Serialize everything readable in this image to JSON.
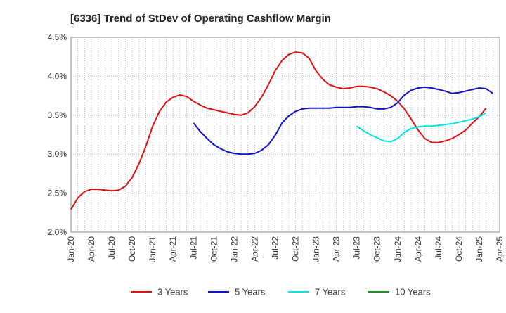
{
  "chart_data": {
    "type": "line",
    "title": "[6336]  Trend of StDev of Operating Cashflow Margin",
    "xlabel": "",
    "ylabel": "",
    "ylim": [
      2.0,
      4.5
    ],
    "y_ticks": [
      "2.0%",
      "2.5%",
      "3.0%",
      "3.5%",
      "4.0%",
      "4.5%"
    ],
    "x_ticks": [
      "Jan-20",
      "Apr-20",
      "Jul-20",
      "Oct-20",
      "Jan-21",
      "Apr-21",
      "Jul-21",
      "Oct-21",
      "Jan-22",
      "Apr-22",
      "Jul-22",
      "Oct-22",
      "Jan-23",
      "Apr-23",
      "Jul-23",
      "Oct-23",
      "Jan-24",
      "Apr-24",
      "Jul-24",
      "Oct-24",
      "Jan-25",
      "Apr-25"
    ],
    "grid": true,
    "legend_position": "bottom",
    "series": [
      {
        "name": "3 Years",
        "color": "#dd1111",
        "points": [
          [
            "2020-01",
            2.29
          ],
          [
            "2020-02",
            2.44
          ],
          [
            "2020-03",
            2.52
          ],
          [
            "2020-04",
            2.55
          ],
          [
            "2020-05",
            2.55
          ],
          [
            "2020-06",
            2.54
          ],
          [
            "2020-07",
            2.53
          ],
          [
            "2020-08",
            2.54
          ],
          [
            "2020-09",
            2.59
          ],
          [
            "2020-10",
            2.7
          ],
          [
            "2020-11",
            2.88
          ],
          [
            "2020-12",
            3.1
          ],
          [
            "2021-01",
            3.36
          ],
          [
            "2021-02",
            3.55
          ],
          [
            "2021-03",
            3.67
          ],
          [
            "2021-04",
            3.73
          ],
          [
            "2021-05",
            3.76
          ],
          [
            "2021-06",
            3.74
          ],
          [
            "2021-07",
            3.68
          ],
          [
            "2021-08",
            3.63
          ],
          [
            "2021-09",
            3.59
          ],
          [
            "2021-10",
            3.57
          ],
          [
            "2021-11",
            3.55
          ],
          [
            "2021-12",
            3.53
          ],
          [
            "2022-01",
            3.51
          ],
          [
            "2022-02",
            3.5
          ],
          [
            "2022-03",
            3.53
          ],
          [
            "2022-04",
            3.61
          ],
          [
            "2022-05",
            3.73
          ],
          [
            "2022-06",
            3.89
          ],
          [
            "2022-07",
            4.07
          ],
          [
            "2022-08",
            4.2
          ],
          [
            "2022-09",
            4.28
          ],
          [
            "2022-10",
            4.31
          ],
          [
            "2022-11",
            4.3
          ],
          [
            "2022-12",
            4.23
          ],
          [
            "2023-01",
            4.07
          ],
          [
            "2023-02",
            3.96
          ],
          [
            "2023-03",
            3.89
          ],
          [
            "2023-04",
            3.86
          ],
          [
            "2023-05",
            3.84
          ],
          [
            "2023-06",
            3.85
          ],
          [
            "2023-07",
            3.87
          ],
          [
            "2023-08",
            3.87
          ],
          [
            "2023-09",
            3.86
          ],
          [
            "2023-10",
            3.84
          ],
          [
            "2023-11",
            3.8
          ],
          [
            "2023-12",
            3.75
          ],
          [
            "2024-01",
            3.68
          ],
          [
            "2024-02",
            3.58
          ],
          [
            "2024-03",
            3.45
          ],
          [
            "2024-04",
            3.31
          ],
          [
            "2024-05",
            3.2
          ],
          [
            "2024-06",
            3.15
          ],
          [
            "2024-07",
            3.15
          ],
          [
            "2024-08",
            3.17
          ],
          [
            "2024-09",
            3.2
          ],
          [
            "2024-10",
            3.25
          ],
          [
            "2024-11",
            3.31
          ],
          [
            "2024-12",
            3.4
          ],
          [
            "2025-01",
            3.48
          ],
          [
            "2025-02",
            3.59
          ]
        ]
      },
      {
        "name": "5 Years",
        "color": "#1111cc",
        "points": [
          [
            "2021-07",
            3.4
          ],
          [
            "2021-08",
            3.29
          ],
          [
            "2021-09",
            3.2
          ],
          [
            "2021-10",
            3.12
          ],
          [
            "2021-11",
            3.07
          ],
          [
            "2021-12",
            3.03
          ],
          [
            "2022-01",
            3.01
          ],
          [
            "2022-02",
            3.0
          ],
          [
            "2022-03",
            3.0
          ],
          [
            "2022-04",
            3.01
          ],
          [
            "2022-05",
            3.05
          ],
          [
            "2022-06",
            3.12
          ],
          [
            "2022-07",
            3.24
          ],
          [
            "2022-08",
            3.4
          ],
          [
            "2022-09",
            3.49
          ],
          [
            "2022-10",
            3.55
          ],
          [
            "2022-11",
            3.58
          ],
          [
            "2022-12",
            3.59
          ],
          [
            "2023-01",
            3.59
          ],
          [
            "2023-02",
            3.59
          ],
          [
            "2023-03",
            3.59
          ],
          [
            "2023-04",
            3.6
          ],
          [
            "2023-05",
            3.6
          ],
          [
            "2023-06",
            3.6
          ],
          [
            "2023-07",
            3.61
          ],
          [
            "2023-08",
            3.61
          ],
          [
            "2023-09",
            3.6
          ],
          [
            "2023-10",
            3.58
          ],
          [
            "2023-11",
            3.58
          ],
          [
            "2023-12",
            3.6
          ],
          [
            "2024-01",
            3.66
          ],
          [
            "2024-02",
            3.76
          ],
          [
            "2024-03",
            3.82
          ],
          [
            "2024-04",
            3.85
          ],
          [
            "2024-05",
            3.86
          ],
          [
            "2024-06",
            3.85
          ],
          [
            "2024-07",
            3.83
          ],
          [
            "2024-08",
            3.81
          ],
          [
            "2024-09",
            3.78
          ],
          [
            "2024-10",
            3.79
          ],
          [
            "2024-11",
            3.81
          ],
          [
            "2024-12",
            3.83
          ],
          [
            "2025-01",
            3.85
          ],
          [
            "2025-02",
            3.84
          ],
          [
            "2025-03",
            3.78
          ]
        ]
      },
      {
        "name": "7 Years",
        "color": "#00e5e5",
        "points": [
          [
            "2023-07",
            3.36
          ],
          [
            "2023-08",
            3.3
          ],
          [
            "2023-09",
            3.25
          ],
          [
            "2023-10",
            3.21
          ],
          [
            "2023-11",
            3.17
          ],
          [
            "2023-12",
            3.16
          ],
          [
            "2024-01",
            3.2
          ],
          [
            "2024-02",
            3.28
          ],
          [
            "2024-03",
            3.33
          ],
          [
            "2024-04",
            3.35
          ],
          [
            "2024-05",
            3.36
          ],
          [
            "2024-06",
            3.36
          ],
          [
            "2024-07",
            3.37
          ],
          [
            "2024-08",
            3.38
          ],
          [
            "2024-09",
            3.39
          ],
          [
            "2024-10",
            3.41
          ],
          [
            "2024-11",
            3.43
          ],
          [
            "2024-12",
            3.45
          ],
          [
            "2025-01",
            3.48
          ],
          [
            "2025-02",
            3.53
          ]
        ]
      },
      {
        "name": "10 Years",
        "color": "#228b22",
        "points": []
      }
    ]
  }
}
